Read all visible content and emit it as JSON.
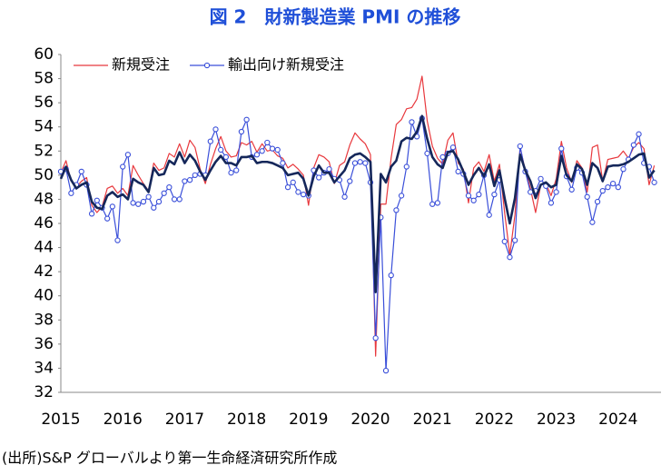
{
  "chart_data": {
    "type": "line",
    "title": "図 2　財新製造業 PMI の推移",
    "source": "(出所)S&P グローバルより第一生命経済研究所作成",
    "legend": "upper left",
    "categories": [
      "2015",
      null,
      null,
      null,
      null,
      null,
      null,
      null,
      null,
      null,
      null,
      null,
      "2016",
      null,
      null,
      null,
      null,
      null,
      null,
      null,
      null,
      null,
      null,
      null,
      "2017",
      null,
      null,
      null,
      null,
      null,
      null,
      null,
      null,
      null,
      null,
      null,
      "2018",
      null,
      null,
      null,
      null,
      null,
      null,
      null,
      null,
      null,
      null,
      null,
      "2019",
      null,
      null,
      null,
      null,
      null,
      null,
      null,
      null,
      null,
      null,
      null,
      "2020",
      null,
      null,
      null,
      null,
      null,
      null,
      null,
      null,
      null,
      null,
      null,
      "2021",
      null,
      null,
      null,
      null,
      null,
      null,
      null,
      null,
      null,
      null,
      null,
      "2022",
      null,
      null,
      null,
      null,
      null,
      null,
      null,
      null,
      null,
      null,
      null,
      "2023",
      null,
      null,
      null,
      null,
      null,
      null,
      null,
      null,
      null,
      null,
      null,
      "2024",
      null,
      null,
      null,
      null,
      null,
      null,
      null
    ],
    "ylim": [
      32,
      60
    ],
    "yticks": [
      32,
      34,
      36,
      38,
      40,
      42,
      44,
      46,
      48,
      50,
      52,
      54,
      56,
      58,
      60
    ],
    "series": [
      {
        "name": "新規受注",
        "color": "#e8383d",
        "width": 1.2,
        "markers": false,
        "values": [
          50.2,
          51.2,
          49.5,
          49.0,
          49.5,
          49.8,
          47.5,
          46.9,
          47.4,
          48.9,
          49.1,
          48.5,
          48.9,
          48.3,
          50.8,
          50.0,
          49.3,
          48.7,
          51.0,
          50.4,
          50.6,
          51.8,
          51.5,
          52.6,
          51.5,
          52.9,
          52.3,
          50.5,
          49.3,
          50.9,
          52.2,
          53.2,
          52.0,
          51.5,
          51.6,
          52.7,
          52.5,
          52.8,
          51.9,
          52.6,
          52.0,
          52.1,
          51.6,
          51.4,
          50.6,
          50.9,
          50.5,
          50.0,
          47.5,
          50.6,
          51.7,
          51.5,
          51.1,
          49.3,
          50.8,
          51.1,
          52.5,
          53.5,
          53.0,
          52.6,
          51.7,
          35.0,
          47.6,
          47.6,
          51.4,
          54.2,
          54.6,
          55.5,
          55.6,
          56.3,
          58.2,
          54.5,
          52.4,
          51.4,
          50.9,
          52.9,
          53.5,
          51.0,
          50.5,
          47.7,
          50.6,
          51.1,
          50.3,
          51.7,
          49.5,
          50.9,
          46.9,
          43.4,
          46.7,
          52.3,
          50.4,
          48.9,
          46.9,
          49.2,
          49.3,
          48.3,
          49.7,
          52.8,
          50.6,
          49.4,
          51.2,
          50.6,
          48.6,
          52.3,
          52.5,
          49.5,
          51.3,
          51.4,
          51.5,
          52.0,
          51.4,
          52.3,
          52.7,
          52.2,
          49.2,
          50.8
        ]
      },
      {
        "name": "輸出向け新規受注",
        "color": "#3a4fd9",
        "width": 1.2,
        "markers": true,
        "values": [
          50.3,
          50.5,
          48.5,
          49.2,
          50.3,
          49.2,
          46.8,
          47.9,
          47.3,
          46.4,
          47.4,
          44.6,
          50.7,
          51.7,
          47.7,
          47.6,
          47.8,
          48.2,
          47.3,
          47.8,
          48.5,
          49.0,
          48.0,
          48.0,
          49.5,
          49.6,
          50.0,
          50.1,
          50.0,
          52.8,
          53.8,
          52.1,
          51.5,
          50.2,
          50.4,
          53.6,
          54.6,
          51.5,
          51.7,
          52.0,
          52.7,
          52.2,
          52.1,
          51.0,
          49.0,
          49.4,
          48.6,
          48.4,
          48.3,
          50.4,
          49.8,
          50.2,
          50.5,
          49.7,
          49.6,
          48.2,
          49.5,
          51.0,
          51.1,
          51.0,
          49.4,
          36.5,
          46.5,
          33.8,
          41.7,
          47.1,
          48.3,
          50.7,
          54.4,
          53.2,
          54.7,
          51.8,
          47.6,
          47.7,
          51.5,
          51.8,
          52.3,
          50.3,
          50.1,
          48.3,
          47.9,
          48.4,
          50.0,
          46.7,
          48.4,
          49.6,
          44.5,
          43.2,
          44.6,
          52.4,
          50.3,
          48.6,
          48.7,
          49.7,
          49.1,
          47.7,
          48.6,
          52.2,
          49.9,
          48.8,
          50.6,
          50.2,
          48.2,
          46.1,
          47.8,
          48.7,
          49.0,
          49.3,
          49.0,
          50.5,
          51.3,
          52.5,
          53.4,
          51.0,
          50.7,
          49.4
        ]
      },
      {
        "color": "#15275a",
        "width": 2.6,
        "markers": false,
        "values": [
          49.7,
          50.7,
          49.6,
          48.9,
          49.2,
          49.4,
          47.8,
          47.3,
          47.2,
          48.3,
          48.6,
          48.2,
          48.4,
          48.0,
          49.7,
          49.4,
          49.2,
          48.6,
          50.6,
          50.0,
          50.1,
          51.2,
          50.9,
          51.9,
          51.0,
          51.7,
          51.2,
          50.3,
          49.6,
          50.4,
          51.1,
          51.6,
          51.0,
          51.0,
          50.8,
          51.5,
          51.5,
          51.6,
          51.0,
          51.1,
          51.1,
          51.0,
          50.8,
          50.6,
          50.0,
          50.1,
          50.2,
          49.7,
          48.3,
          49.9,
          50.8,
          50.2,
          50.2,
          49.4,
          49.9,
          50.4,
          51.4,
          51.7,
          51.8,
          51.5,
          51.1,
          40.3,
          50.1,
          49.4,
          50.7,
          51.2,
          52.8,
          53.1,
          53.0,
          53.6,
          54.9,
          53.0,
          51.5,
          50.9,
          50.6,
          51.9,
          52.0,
          51.3,
          50.3,
          49.2,
          50.0,
          50.6,
          49.9,
          50.9,
          49.1,
          50.4,
          48.1,
          46.0,
          48.1,
          51.7,
          50.4,
          49.5,
          48.1,
          49.2,
          49.4,
          49.0,
          49.2,
          51.6,
          50.0,
          49.5,
          50.9,
          50.5,
          49.2,
          51.0,
          50.6,
          49.5,
          50.7,
          50.8,
          50.8,
          50.9,
          51.1,
          51.4,
          51.7,
          51.8,
          49.8,
          50.4
        ]
      }
    ]
  }
}
